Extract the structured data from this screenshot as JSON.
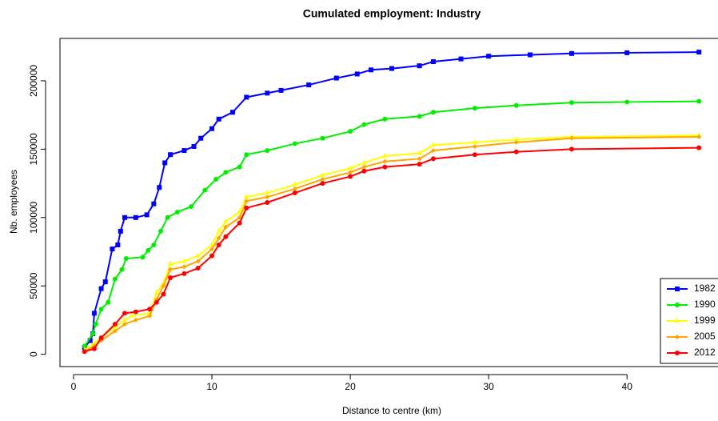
{
  "chart_data": {
    "type": "line",
    "title": "Cumulated employment: Industry",
    "x_label": "Distance to centre (km)",
    "y_label": "Nb. employees",
    "xlim": [
      -0.98,
      46.98
    ],
    "xticks": [
      0,
      10,
      20,
      30,
      40
    ],
    "ylim": [
      -9000,
      231000
    ],
    "yticks": [
      0,
      50000,
      100000,
      150000,
      200000
    ],
    "grid": false,
    "legend": "bottom-right",
    "series": [
      {
        "name": "1982",
        "color": "#0000ff",
        "marker": "square",
        "x": [
          0.8,
          1.2,
          1.4,
          1.5,
          2.0,
          2.3,
          2.8,
          3.2,
          3.4,
          3.7,
          4.5,
          5.3,
          5.8,
          6.2,
          6.6,
          7.0,
          8.0,
          8.7,
          9.2,
          10.0,
          10.5,
          11.5,
          12.5,
          14,
          15,
          17,
          19,
          20.5,
          21.5,
          23,
          25,
          26,
          28,
          30,
          33,
          36,
          40,
          45.2
        ],
        "values": [
          5000,
          10000,
          15000,
          30000,
          48000,
          53000,
          77000,
          80000,
          90000,
          100000,
          100000,
          102000,
          110000,
          122000,
          140000,
          146000,
          149000,
          152000,
          158000,
          165000,
          172000,
          177000,
          188000,
          191000,
          193000,
          197000,
          202000,
          205000,
          208000,
          209000,
          211000,
          214000,
          216000,
          218000,
          219000,
          220000,
          220500,
          221000
        ]
      },
      {
        "name": "1990",
        "color": "#00ee00",
        "marker": "circle",
        "x": [
          0.8,
          1.4,
          1.6,
          2,
          2.5,
          3,
          3.5,
          3.8,
          5,
          5.4,
          5.8,
          6.3,
          6.8,
          7.5,
          8.5,
          9.5,
          10.3,
          11,
          12,
          12.5,
          14,
          16,
          18,
          20,
          21,
          22.5,
          25,
          26,
          29,
          32,
          36,
          40,
          45.2
        ],
        "values": [
          6000,
          15000,
          22000,
          33000,
          38000,
          55000,
          62000,
          70000,
          71000,
          76000,
          80000,
          90000,
          100000,
          104000,
          108000,
          120000,
          128000,
          133000,
          137000,
          146000,
          149000,
          154000,
          158000,
          163000,
          168000,
          172000,
          174000,
          177000,
          180000,
          182000,
          184000,
          184500,
          185000
        ]
      },
      {
        "name": "1999",
        "color": "#ffff00",
        "marker": "triangle",
        "x": [
          0.8,
          1.5,
          2,
          3,
          3.7,
          4.2,
          5.5,
          6,
          6.5,
          7,
          8,
          9,
          10,
          10.5,
          11,
          12,
          12.5,
          14,
          16,
          18,
          20,
          21,
          22.5,
          25,
          26,
          29,
          32,
          36,
          45.2
        ],
        "values": [
          3000,
          8000,
          12000,
          20000,
          25000,
          28000,
          30000,
          45000,
          52000,
          66000,
          68000,
          72000,
          80000,
          90000,
          97000,
          104000,
          115000,
          118000,
          124000,
          131000,
          136000,
          140000,
          145000,
          147000,
          153000,
          155000,
          157000,
          159000,
          160000
        ]
      },
      {
        "name": "2005",
        "color": "#ffa500",
        "marker": "diamond",
        "x": [
          0.8,
          1.5,
          2,
          3,
          3.7,
          4.5,
          5.5,
          6,
          6.5,
          7,
          8,
          9,
          10,
          10.5,
          11,
          12,
          12.5,
          14,
          16,
          18,
          20,
          21,
          22.5,
          25,
          26,
          29,
          32,
          36,
          45.2
        ],
        "values": [
          2000,
          6000,
          10000,
          17000,
          22000,
          25000,
          28000,
          40000,
          50000,
          62000,
          64000,
          68000,
          77000,
          85000,
          93000,
          100000,
          112000,
          115000,
          121000,
          128000,
          133000,
          137000,
          141000,
          143000,
          149000,
          152000,
          155000,
          158000,
          159000
        ]
      },
      {
        "name": "2012",
        "color": "#ff0000",
        "marker": "circle",
        "x": [
          0.8,
          1.5,
          2,
          3,
          3.7,
          4.5,
          5.5,
          6,
          6.5,
          7,
          8,
          9,
          10,
          10.5,
          11,
          12,
          12.5,
          14,
          16,
          18,
          20,
          21,
          22.5,
          25,
          26,
          29,
          32,
          36,
          45.2
        ],
        "values": [
          2000,
          4000,
          12000,
          22000,
          30000,
          31000,
          33000,
          38000,
          44000,
          56000,
          59000,
          63000,
          72000,
          80000,
          86000,
          96000,
          107000,
          111000,
          118000,
          125000,
          130000,
          134000,
          137000,
          139000,
          143000,
          146000,
          148000,
          150000,
          151000
        ]
      }
    ]
  }
}
